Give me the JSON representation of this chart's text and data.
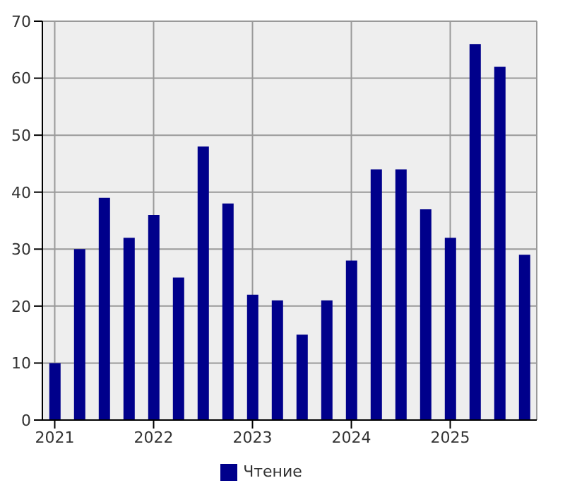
{
  "chart_data": {
    "type": "bar",
    "categories": [
      "2021",
      null,
      null,
      null,
      "2022",
      null,
      null,
      null,
      "2023",
      null,
      null,
      null,
      "2024",
      null,
      null,
      null,
      "2025",
      null,
      null,
      null
    ],
    "series": [
      {
        "name": "Чтение",
        "color": "#00008b",
        "values": [
          10,
          30,
          39,
          32,
          36,
          25,
          48,
          38,
          22,
          21,
          15,
          21,
          28,
          44,
          44,
          37,
          32,
          66,
          62,
          29
        ]
      }
    ],
    "ylim": [
      0,
      70
    ],
    "yticks": [
      0,
      10,
      20,
      30,
      40,
      50,
      60,
      70
    ],
    "grid": true,
    "legend": "bottom"
  }
}
